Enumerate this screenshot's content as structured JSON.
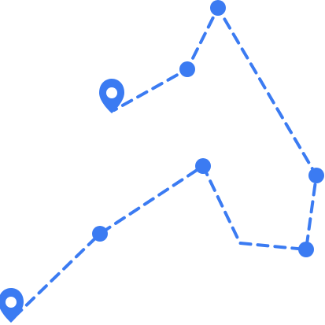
{
  "route": {
    "color": "#3B7BF2",
    "line_style": "dashed",
    "start_marker": {
      "icon": "map-pin-icon"
    },
    "end_marker": {
      "icon": "map-pin-icon"
    },
    "waypoint_icon": "waypoint-dot",
    "waypoint_count": 8
  }
}
